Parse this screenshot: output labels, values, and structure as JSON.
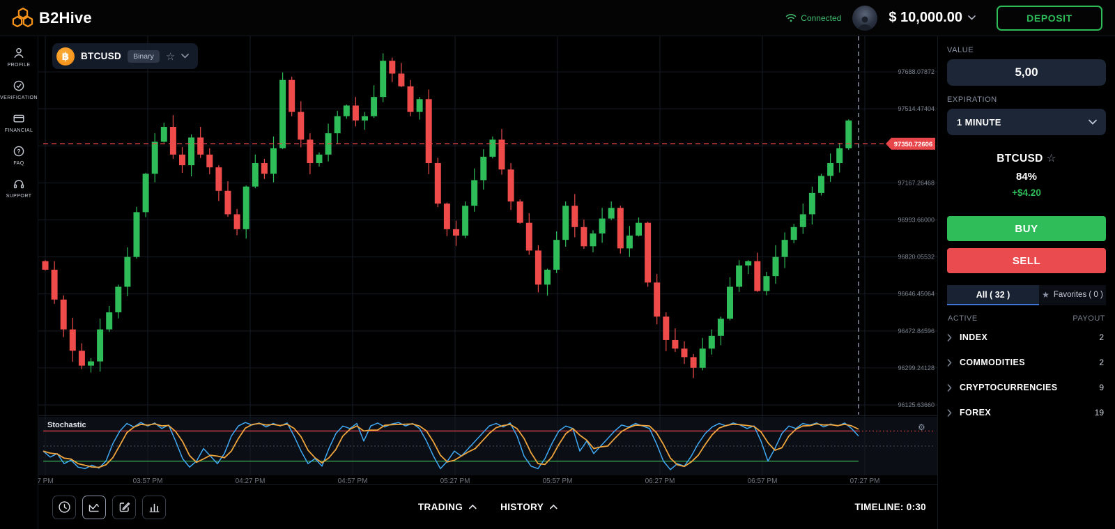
{
  "topbar": {
    "brand": "B2Hive",
    "connection_status": "Connected",
    "balance": "$ 10,000.00",
    "deposit_label": "DEPOSIT"
  },
  "sidebar": {
    "items": [
      {
        "label": "PROFILE"
      },
      {
        "label": "VERIFICATION"
      },
      {
        "label": "FINANCIAL"
      },
      {
        "label": "FAQ"
      },
      {
        "label": "SUPPORT"
      }
    ]
  },
  "symbol_chip": {
    "symbol": "BTCUSD",
    "badge": "Binary",
    "bitcoin_glyph": "฿",
    "star_glyph": "☆"
  },
  "chart_data": {
    "type": "candlestick",
    "symbol": "BTCUSD",
    "ylim": [
      96080,
      97855
    ],
    "grid": [
      {
        "price": 97688.07872,
        "label": "97688.07872"
      },
      {
        "price": 97514.47404,
        "label": "97514.47404"
      },
      {
        "price": 97340.86936,
        "label": ""
      },
      {
        "price": 97167.26468,
        "label": "97167.26468"
      },
      {
        "price": 96993.66,
        "label": "96993.66000"
      },
      {
        "price": 96820.05532,
        "label": "96820.05532"
      },
      {
        "price": 96646.45064,
        "label": "96646.45064"
      },
      {
        "price": 96472.84596,
        "label": "96472.84596"
      },
      {
        "price": 96299.24128,
        "label": "96299.24128"
      },
      {
        "price": 96125.6366,
        "label": "96125.63660"
      }
    ],
    "current_price": 97350.72606,
    "current_price_label": "97350.72606",
    "time_labels": [
      "7 PM",
      "03:57 PM",
      "04:27 PM",
      "04:57 PM",
      "05:27 PM",
      "05:57 PM",
      "06:27 PM",
      "06:57 PM",
      "07:27 PM"
    ],
    "closes": [
      96760,
      96620,
      96480,
      96380,
      96310,
      96330,
      96480,
      96560,
      96680,
      96820,
      97030,
      97210,
      97360,
      97430,
      97300,
      97250,
      97380,
      97300,
      97240,
      97130,
      97020,
      96950,
      97150,
      97260,
      97210,
      97330,
      97650,
      97500,
      97370,
      97260,
      97300,
      97400,
      97480,
      97530,
      97460,
      97480,
      97570,
      97740,
      97680,
      97620,
      97500,
      97560,
      97260,
      97070,
      96950,
      96920,
      97060,
      97180,
      97290,
      97370,
      97230,
      97080,
      96980,
      96850,
      96690,
      96760,
      96900,
      97060,
      96960,
      96870,
      96930,
      97000,
      97050,
      96860,
      96920,
      96980,
      96700,
      96540,
      96430,
      96390,
      96350,
      96300,
      96390,
      96450,
      96530,
      96680,
      96780,
      96800,
      96660,
      96730,
      96820,
      96900,
      96960,
      97020,
      97120,
      97200,
      97260,
      97330,
      97460
    ],
    "stochastic": {
      "label": "Stochastic",
      "settings_icon": "⚙",
      "upper": 80,
      "lower": 20,
      "middle": 50,
      "k": [
        40,
        28,
        35,
        15,
        22,
        8,
        5,
        12,
        6,
        20,
        55,
        80,
        95,
        88,
        97,
        90,
        96,
        85,
        92,
        60,
        25,
        8,
        20,
        45,
        30,
        15,
        35,
        70,
        90,
        97,
        92,
        96,
        88,
        95,
        90,
        96,
        70,
        40,
        15,
        25,
        10,
        45,
        75,
        90,
        85,
        95,
        60,
        90,
        96,
        88,
        94,
        97,
        90,
        95,
        85,
        60,
        30,
        5,
        20,
        40,
        30,
        45,
        60,
        75,
        90,
        95,
        88,
        96,
        70,
        30,
        10,
        5,
        25,
        55,
        80,
        90,
        85,
        40,
        60,
        35,
        50,
        65,
        80,
        92,
        88,
        95,
        90,
        85,
        55,
        20,
        3,
        15,
        10,
        30,
        55,
        75,
        88,
        95,
        90,
        96,
        92,
        85,
        90,
        60,
        20,
        45,
        75,
        90,
        85,
        95,
        92,
        96,
        88,
        94,
        90,
        96,
        85,
        70
      ]
    },
    "colors": {
      "up": "#2ebd59",
      "down": "#ef4b4b",
      "grid": "#161b24",
      "axis_text": "#7b828e",
      "price_line": "#e8464a",
      "dashed_marker": "#8a93a5",
      "stoch_k": "#3fa9f5",
      "stoch_d": "#f0a43c",
      "stoch_upper": "#e8464a",
      "stoch_lower": "#3cb454",
      "stoch_mid": "#4a5160"
    }
  },
  "trade_panel": {
    "value_label": "VALUE",
    "value": "5,00",
    "expiration_label": "EXPIRATION",
    "expiration": "1 MINUTE",
    "asset": "BTCUSD",
    "star_glyph": "☆",
    "payout_percent": "84%",
    "profit": "+$4.20",
    "buy_label": "BUY",
    "sell_label": "SELL",
    "tab_all": "All ( 32 )",
    "tab_favorites": "Favorites ( 0 )",
    "favorites_star": "★",
    "col_active": "ACTIVE",
    "col_payout": "PAYOUT",
    "groups": [
      {
        "label": "INDEX",
        "payout": "2"
      },
      {
        "label": "COMMODITIES",
        "payout": "2"
      },
      {
        "label": "CRYPTOCURRENCIES",
        "payout": "9"
      },
      {
        "label": "FOREX",
        "payout": "19"
      }
    ]
  },
  "bottombar": {
    "trading_label": "TRADING",
    "history_label": "HISTORY",
    "timeline_label": "TIMELINE: 0:30"
  }
}
